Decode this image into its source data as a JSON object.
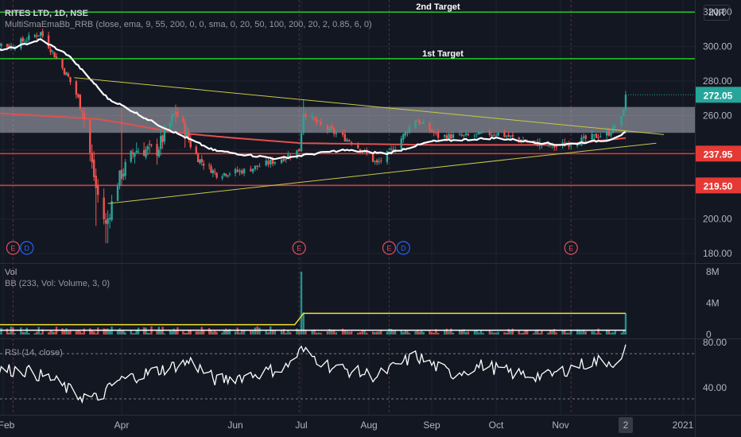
{
  "header": {
    "title": "RITES LTD, 1D, NSE",
    "indicator": "MultiSmaEmaBb_RRB (close, ema, 9, 55, 200, 0, 0, sma, 0, 20, 50, 100, 200, 20, 2, 0.85, 6, 0)",
    "currency": "INR"
  },
  "volume_pane": {
    "label": "Vol",
    "bb_label": "BB (233, Vol: Volume, 3, 0)"
  },
  "rsi_pane": {
    "label": "RSI (14, close)"
  },
  "annotations": {
    "target1": "1st Target",
    "target2": "2nd Target"
  },
  "price_tags": [
    {
      "text": "272.05",
      "value": 272.05,
      "color": "#26a69a"
    },
    {
      "text": "237.95",
      "value": 237.95,
      "color": "#e53935"
    },
    {
      "text": "219.50",
      "value": 219.5,
      "color": "#e53935"
    }
  ],
  "event_markers": [
    {
      "letter": "E",
      "date": "2020-02-06",
      "kind": "earnings"
    },
    {
      "letter": "D",
      "date": "2020-02-13",
      "kind": "dividend"
    },
    {
      "letter": "E",
      "date": "2020-06-30",
      "kind": "earnings"
    },
    {
      "letter": "E",
      "date": "2020-08-11",
      "kind": "earnings"
    },
    {
      "letter": "D",
      "date": "2020-08-18",
      "kind": "dividend"
    },
    {
      "letter": "E",
      "date": "2020-11-06",
      "kind": "earnings"
    }
  ],
  "colors": {
    "background": "#131722",
    "up": "#26a69a",
    "down": "#ef5350",
    "target_line": "#26c926",
    "support_line": "#e53935",
    "trend_line": "#c8c84a",
    "ema55": "#ffffff",
    "ema200": "#e0504f",
    "zone": "#b2b5be",
    "vol_bb": "#f0e030",
    "rsi": "#ffffff"
  },
  "chart_data": {
    "type": "candlestick",
    "symbol": "RITES LTD",
    "timeframe": "1D",
    "exchange": "NSE",
    "x_tick_labels": [
      "Feb",
      "Apr",
      "Jun",
      "Jul",
      "Aug",
      "Sep",
      "Oct",
      "Nov",
      "2",
      "2021"
    ],
    "x_tick_dates": [
      "2020-02-01",
      "2020-04-01",
      "2020-06-01",
      "2020-07-01",
      "2020-08-01",
      "2020-09-01",
      "2020-10-01",
      "2020-11-01",
      "2020-12-02",
      "2021-01-01"
    ],
    "price_axis": {
      "ticks": [
        180,
        200,
        220,
        240,
        260,
        280,
        300,
        320
      ],
      "tick_labels": [
        "180.00",
        "200.00",
        "220.00",
        "240.00",
        "260.00",
        "280.00",
        "300.00",
        "320.00"
      ],
      "ylim": [
        175,
        327
      ]
    },
    "horizontal_levels": [
      {
        "name": "2nd Target",
        "value": 320.0
      },
      {
        "name": "1st Target",
        "value": 293.0
      },
      {
        "value": 237.95
      },
      {
        "value": 219.5
      }
    ],
    "zone": {
      "from": 250,
      "to": 265
    },
    "price_keypoints": [
      [
        "2020-01-20",
        305
      ],
      [
        "2020-02-05",
        300
      ],
      [
        "2020-02-20",
        308
      ],
      [
        "2020-03-05",
        282
      ],
      [
        "2020-03-12",
        265
      ],
      [
        "2020-03-19",
        218
      ],
      [
        "2020-03-24",
        196
      ],
      [
        "2020-03-30",
        222
      ],
      [
        "2020-04-08",
        240
      ],
      [
        "2020-04-20",
        240
      ],
      [
        "2020-04-30",
        262
      ],
      [
        "2020-05-12",
        235
      ],
      [
        "2020-05-22",
        226
      ],
      [
        "2020-06-05",
        228
      ],
      [
        "2020-06-22",
        235
      ],
      [
        "2020-06-30",
        240
      ],
      [
        "2020-07-02",
        262
      ],
      [
        "2020-07-10",
        254
      ],
      [
        "2020-07-24",
        245
      ],
      [
        "2020-08-05",
        232
      ],
      [
        "2020-08-14",
        242
      ],
      [
        "2020-08-24",
        258
      ],
      [
        "2020-09-04",
        248
      ],
      [
        "2020-09-18",
        248
      ],
      [
        "2020-10-01",
        250
      ],
      [
        "2020-10-15",
        245
      ],
      [
        "2020-10-30",
        242
      ],
      [
        "2020-11-12",
        246
      ],
      [
        "2020-11-24",
        250
      ],
      [
        "2020-11-30",
        258
      ],
      [
        "2020-12-02",
        272
      ]
    ],
    "trendlines": [
      {
        "name": "upper",
        "from": [
          "2020-03-08",
          282
        ],
        "to": [
          "2020-12-22",
          249
        ]
      },
      {
        "name": "lower",
        "from": [
          "2020-03-25",
          209
        ],
        "to": [
          "2020-12-18",
          244
        ]
      }
    ],
    "volume_axis": {
      "ticks": [
        0,
        4,
        8
      ],
      "tick_labels": [
        "0",
        "4M",
        "8M"
      ],
      "ylim": [
        0,
        8.5
      ],
      "unit": "M"
    },
    "volume_keypoints": [
      [
        "2020-01-20",
        0.5
      ],
      [
        "2020-06-30",
        1.5
      ],
      [
        "2020-07-01",
        8.0
      ],
      [
        "2020-07-02",
        2.8
      ],
      [
        "2020-07-08",
        0.8
      ],
      [
        "2020-12-01",
        0.3
      ],
      [
        "2020-12-02",
        2.7
      ]
    ],
    "volume_bb_upper": 2.7,
    "rsi_axis": {
      "ticks": [
        40,
        80
      ],
      "tick_labels": [
        "40.00",
        "80.00"
      ],
      "ylim": [
        16,
        82
      ],
      "bands": [
        30,
        70
      ]
    },
    "rsi_keypoints": [
      [
        "2020-01-20",
        54
      ],
      [
        "2020-02-10",
        56
      ],
      [
        "2020-02-25",
        48
      ],
      [
        "2020-03-10",
        33
      ],
      [
        "2020-03-20",
        30
      ],
      [
        "2020-03-30",
        46
      ],
      [
        "2020-04-20",
        55
      ],
      [
        "2020-05-08",
        63
      ],
      [
        "2020-05-22",
        46
      ],
      [
        "2020-06-10",
        52
      ],
      [
        "2020-06-24",
        58
      ],
      [
        "2020-07-01",
        73
      ],
      [
        "2020-07-15",
        58
      ],
      [
        "2020-08-05",
        50
      ],
      [
        "2020-08-24",
        68
      ],
      [
        "2020-09-10",
        52
      ],
      [
        "2020-09-25",
        60
      ],
      [
        "2020-10-10",
        52
      ],
      [
        "2020-10-26",
        50
      ],
      [
        "2020-11-10",
        60
      ],
      [
        "2020-11-20",
        64
      ],
      [
        "2020-11-30",
        62
      ],
      [
        "2020-12-02",
        78
      ]
    ]
  }
}
